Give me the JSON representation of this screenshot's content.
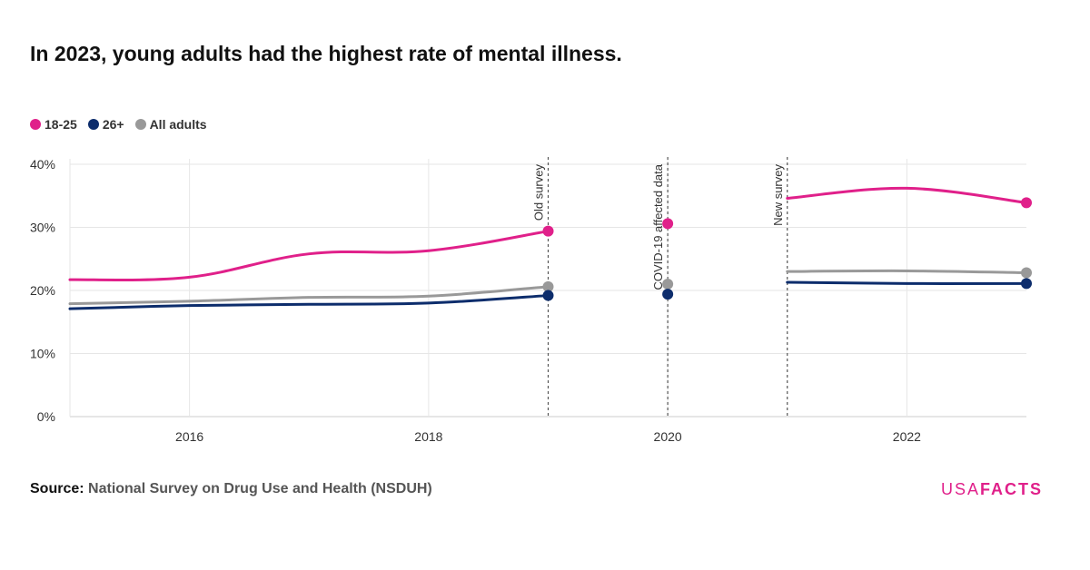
{
  "title": "In 2023, young adults had the highest rate of mental illness.",
  "source_label": "Source:",
  "source_text": "National Survey on Drug Use and Health (NSDUH)",
  "brand": {
    "part1": "USA",
    "part2": "FACTS",
    "color": "#e0208a"
  },
  "colors": {
    "grid": "#e6e6e6",
    "axis": "#cccccc",
    "ref_line": "#555555"
  },
  "chart_data": {
    "type": "line",
    "x_range": [
      2015,
      2023
    ],
    "ylim": [
      0,
      40
    ],
    "y_ticks": [
      0,
      10,
      20,
      30,
      40
    ],
    "y_tick_labels": [
      "0%",
      "10%",
      "20%",
      "30%",
      "40%"
    ],
    "x_ticks": [
      2016,
      2018,
      2020,
      2022
    ],
    "x_tick_labels": [
      "2016",
      "2018",
      "2020",
      "2022"
    ],
    "grid": true,
    "legend_position": "top-left",
    "series": [
      {
        "name": "18-25",
        "color": "#e0208a",
        "segments": [
          {
            "x": [
              2015,
              2016,
              2017,
              2018,
              2019
            ],
            "y": [
              21.7,
              22.1,
              25.8,
              26.3,
              29.4
            ],
            "end_marker": true
          },
          {
            "x": [
              2020
            ],
            "y": [
              30.6
            ],
            "end_marker": true
          },
          {
            "x": [
              2021,
              2022,
              2023
            ],
            "y": [
              34.6,
              36.2,
              33.9
            ],
            "end_marker": true
          }
        ]
      },
      {
        "name": "26+",
        "color": "#0d2d6c",
        "segments": [
          {
            "x": [
              2015,
              2016,
              2017,
              2018,
              2019
            ],
            "y": [
              17.1,
              17.6,
              17.8,
              18.0,
              19.2
            ],
            "end_marker": true
          },
          {
            "x": [
              2020
            ],
            "y": [
              19.4
            ],
            "end_marker": true
          },
          {
            "x": [
              2021,
              2022,
              2023
            ],
            "y": [
              21.3,
              21.1,
              21.1
            ],
            "end_marker": true
          }
        ]
      },
      {
        "name": "All adults",
        "color": "#999999",
        "segments": [
          {
            "x": [
              2015,
              2016,
              2017,
              2018,
              2019
            ],
            "y": [
              17.9,
              18.3,
              18.9,
              19.1,
              20.6
            ],
            "end_marker": true
          },
          {
            "x": [
              2020
            ],
            "y": [
              21.0
            ],
            "end_marker": true
          },
          {
            "x": [
              2021,
              2022,
              2023
            ],
            "y": [
              23.0,
              23.1,
              22.8
            ],
            "end_marker": true
          }
        ]
      }
    ],
    "annotations": [
      {
        "x": 2019,
        "label": "Old survey"
      },
      {
        "x": 2020,
        "label": "COVID-19 affected data"
      },
      {
        "x": 2021,
        "label": "New survey"
      }
    ]
  }
}
